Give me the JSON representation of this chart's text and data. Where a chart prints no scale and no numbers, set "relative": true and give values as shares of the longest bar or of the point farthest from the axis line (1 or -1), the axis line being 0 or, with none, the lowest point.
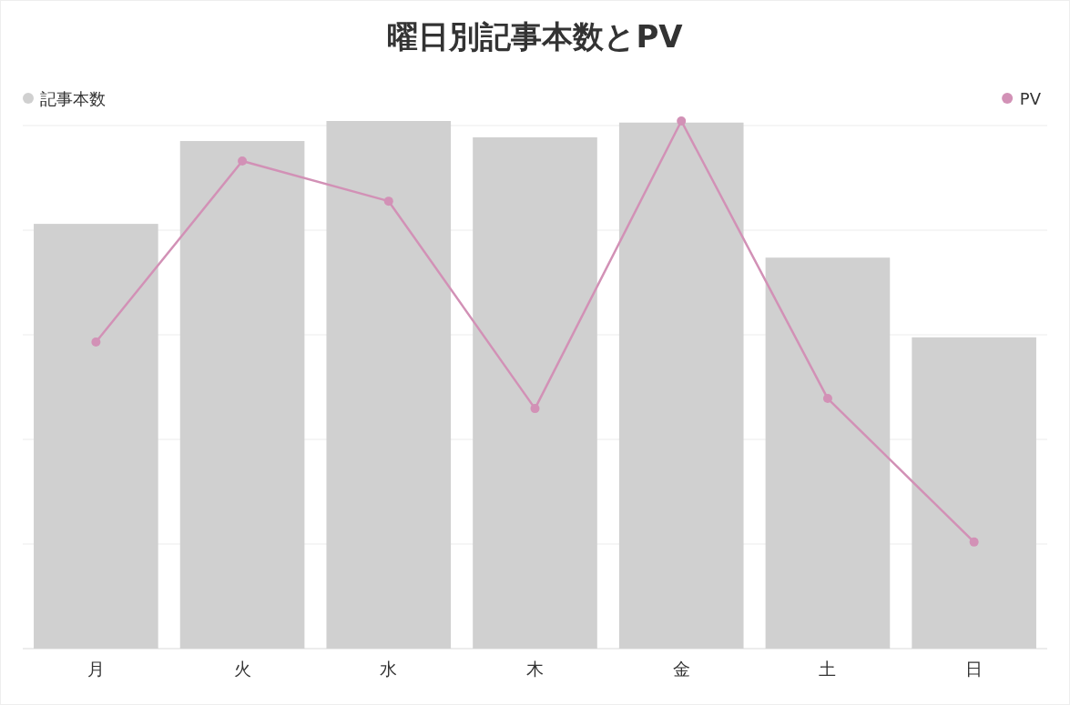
{
  "chart_data": {
    "type": "bar",
    "title": "曜日別記事本数とPV",
    "relative": true,
    "categories": [
      "月",
      "火",
      "水",
      "木",
      "金",
      "土",
      "日"
    ],
    "series": [
      {
        "name": "記事本数",
        "color": "#d0d0d0",
        "values": [
          0.805,
          0.962,
          1.0,
          0.969,
          0.997,
          0.741,
          0.59
        ]
      },
      {
        "name": "PV",
        "type": "line",
        "color": "#d291b6",
        "values": [
          0.581,
          0.924,
          0.848,
          0.455,
          1.0,
          0.474,
          0.202
        ]
      }
    ],
    "grid": "y",
    "legend": "top",
    "marker": "circle"
  }
}
